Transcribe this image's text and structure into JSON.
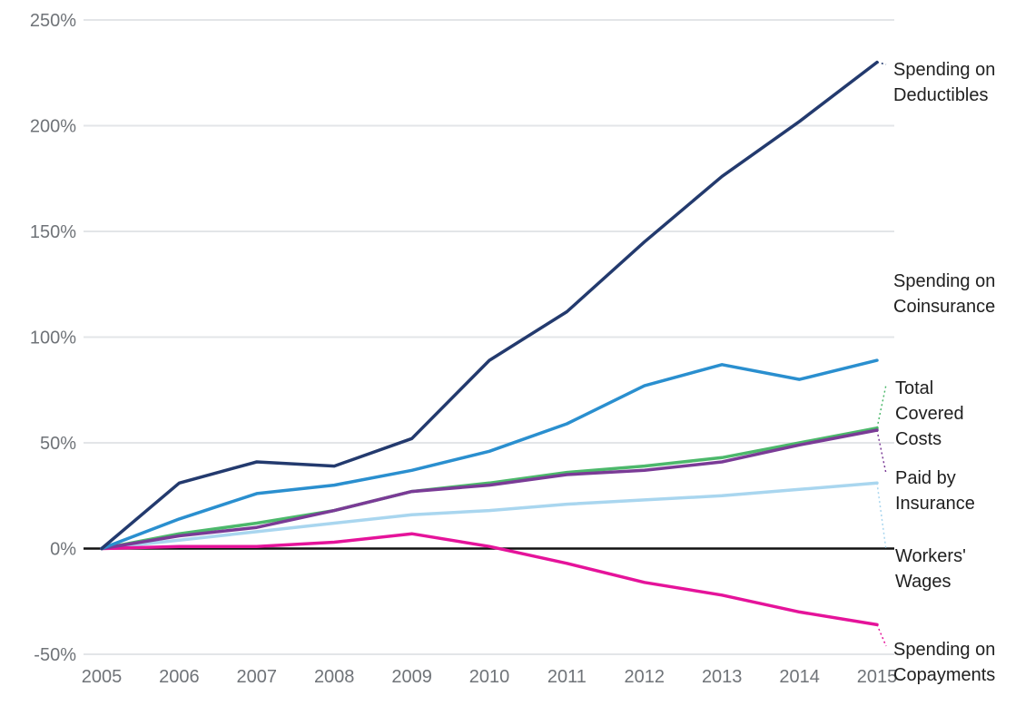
{
  "chart_data": {
    "type": "line",
    "title": "",
    "xlabel": "",
    "ylabel": "",
    "x": [
      2005,
      2006,
      2007,
      2008,
      2009,
      2010,
      2011,
      2012,
      2013,
      2014,
      2015
    ],
    "x_tick_labels": [
      "2005",
      "2006",
      "2007",
      "2008",
      "2009",
      "2010",
      "2011",
      "2012",
      "2013",
      "2014",
      "2015"
    ],
    "y_tick_labels": [
      "250%",
      "200%",
      "150%",
      "100%",
      "50%",
      "0%",
      "-50%"
    ],
    "y_ticks": [
      250,
      200,
      150,
      100,
      50,
      0,
      -50
    ],
    "ylim": [
      -50,
      250
    ],
    "grid": true,
    "legend": "direct labels at right end of each line",
    "series": [
      {
        "key": "deductibles",
        "name_lines": [
          "Spending on",
          "Deductibles"
        ],
        "color": "#233a6e",
        "values": [
          0,
          31,
          41,
          39,
          52,
          89,
          112,
          145,
          176,
          202,
          230
        ]
      },
      {
        "key": "coinsurance",
        "name_lines": [
          "Spending on",
          "Coinsurance"
        ],
        "color": "#2a8fcf",
        "values": [
          0,
          14,
          26,
          30,
          37,
          46,
          59,
          77,
          87,
          80,
          89
        ]
      },
      {
        "key": "total-covered-costs",
        "name_lines": [
          "Total",
          "Covered",
          "Costs"
        ],
        "color": "#4cb86b",
        "values": [
          0,
          7,
          12,
          18,
          27,
          31,
          36,
          39,
          43,
          50,
          57
        ]
      },
      {
        "key": "paid-by-insurance",
        "name_lines": [
          "Paid by",
          "Insurance"
        ],
        "color": "#7a3b96",
        "values": [
          0,
          6,
          10,
          18,
          27,
          30,
          35,
          37,
          41,
          49,
          56
        ]
      },
      {
        "key": "workers-wages",
        "name_lines": [
          "Workers'",
          "Wages"
        ],
        "color": "#a9d6ef",
        "values": [
          0,
          4,
          8,
          12,
          16,
          18,
          21,
          23,
          25,
          28,
          31
        ]
      },
      {
        "key": "copayments",
        "name_lines": [
          "Spending on",
          "Copayments"
        ],
        "color": "#e5139a",
        "values": [
          0,
          1,
          1,
          3,
          7,
          1,
          -7,
          -16,
          -22,
          -30,
          -36
        ]
      }
    ]
  }
}
